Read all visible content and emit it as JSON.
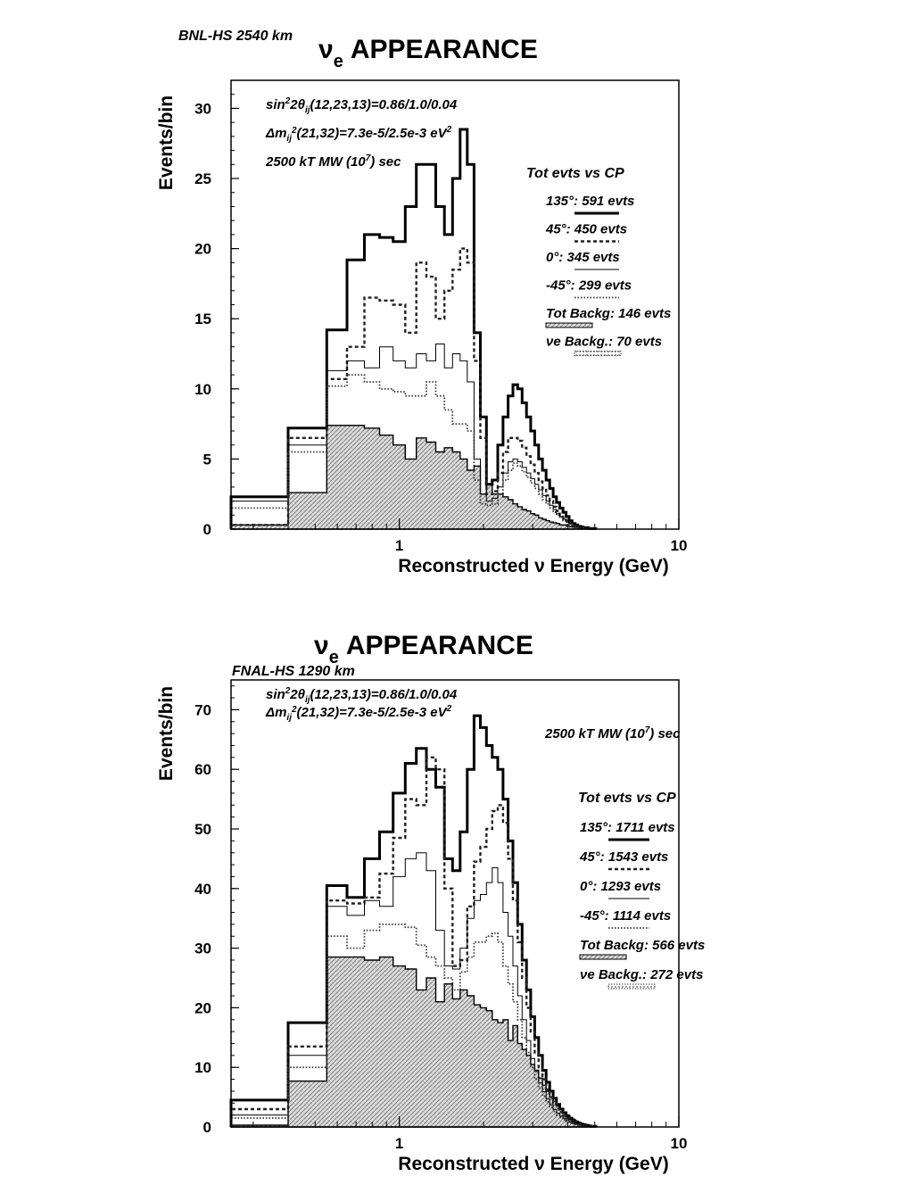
{
  "chart_data": [
    {
      "type": "line",
      "experiment_label": "BNL-HS 2540 km",
      "title_sym": "ν",
      "title_sub": "e",
      "title_rest": "APPEARANCE",
      "params": {
        "line1_a": "sin",
        "line1_b": "2",
        "line1_c": "2θ",
        "line1_d": "ij",
        "line1_e": "(12,23,13)=0.86/1.0/0.04",
        "line2_a": "Δm",
        "line2_b": "ij",
        "line2_c": "2",
        "line2_d": "(21,32)=7.3e-5/2.5e-3 eV",
        "line2_e": "2",
        "line3_a": "2500 kT MW (10",
        "line3_b": "7",
        "line3_c": ") sec"
      },
      "legend_title": "Tot evts vs CP",
      "legend": [
        {
          "text": "135°: 591 evts",
          "style": "solid"
        },
        {
          "text": "45°: 450  evts",
          "style": "dashed"
        },
        {
          "text": "0°: 345  evts",
          "style": "thin"
        },
        {
          "text": "-45°: 299  evts",
          "style": "dotted"
        },
        {
          "text": "Tot Backg: 146 evts",
          "style": "shaded"
        },
        {
          "text": "νe Backg.: 70 evts",
          "style": "dotted-shaded"
        }
      ],
      "ylabel": "Events/bin",
      "xlabel": "Reconstructed ν Energy (GeV)",
      "xscale": "log",
      "xlim": [
        0.25,
        10
      ],
      "ylim": [
        0,
        32
      ],
      "xticks": [
        {
          "v": 1,
          "label": "1"
        },
        {
          "v": 10,
          "label": "10"
        }
      ],
      "yticks": [
        0,
        5,
        10,
        15,
        20,
        25,
        30
      ],
      "coarse_edges": [
        0.25,
        0.4,
        0.55
      ],
      "fine_start": 0.55,
      "fine_step": 0.1,
      "fine_end": 10,
      "series": [
        {
          "style": "solid",
          "coarse": [
            2.3,
            7.2
          ],
          "fine": [
            14.2,
            19.2,
            21.0,
            20.8,
            20.5,
            23.0,
            26.0,
            26.0,
            23.0,
            21.0,
            25.0,
            28.5,
            26.0,
            14.0,
            8.0,
            3.2,
            3.5,
            6.0,
            8.0,
            9.5,
            10.3,
            10.0,
            9.0,
            8.0,
            7.0,
            6.0,
            5.0,
            4.2,
            3.5,
            2.9,
            2.3,
            1.9,
            1.5,
            1.2,
            0.9,
            0.6,
            0.4,
            0.3,
            0.2,
            0.15,
            0.1,
            0.1,
            0.05,
            0.05,
            0.05
          ]
        },
        {
          "style": "dashed",
          "coarse": [
            0.3,
            6.5
          ],
          "fine": [
            10.7,
            13.0,
            16.5,
            16.3,
            16.0,
            14.0,
            19.0,
            18.0,
            15.0,
            17.0,
            18.5,
            20.0,
            19.0,
            12.0,
            6.5,
            2.5,
            2.7,
            4.0,
            5.5,
            6.5,
            6.5,
            6.3,
            5.8,
            5.2,
            4.6,
            4.0,
            3.4,
            2.9,
            2.4,
            2.0,
            1.6,
            1.3,
            1.0,
            0.8,
            0.6,
            0.4,
            0.3,
            0.2,
            0.15,
            0.1,
            0.1,
            0.05,
            0.05,
            0.05,
            0.05
          ]
        },
        {
          "style": "thin",
          "coarse": [
            2.0,
            6.0
          ],
          "fine": [
            11.3,
            12.0,
            11.5,
            13.0,
            12.0,
            11.5,
            12.5,
            12.0,
            13.2,
            11.5,
            12.5,
            12.0,
            10.5,
            5.0,
            2.5,
            2.0,
            2.2,
            3.0,
            4.0,
            4.8,
            5.0,
            4.8,
            4.4,
            4.0,
            3.6,
            3.2,
            2.8,
            2.4,
            2.0,
            1.7,
            1.4,
            1.1,
            0.9,
            0.7,
            0.5,
            0.4,
            0.3,
            0.2,
            0.15,
            0.1,
            0.1,
            0.05,
            0.05,
            0.05,
            0.05
          ]
        },
        {
          "style": "dotted",
          "coarse": [
            1.5,
            5.5
          ],
          "fine": [
            10.2,
            11.0,
            10.5,
            10.0,
            9.8,
            9.5,
            9.5,
            10.5,
            9.5,
            8.5,
            7.5,
            7.5,
            7.0,
            3.5,
            1.8,
            1.7,
            1.8,
            2.5,
            3.5,
            4.2,
            4.7,
            4.5,
            4.1,
            3.7,
            3.3,
            2.9,
            2.5,
            2.1,
            1.8,
            1.5,
            1.2,
            1.0,
            0.8,
            0.6,
            0.5,
            0.35,
            0.25,
            0.2,
            0.15,
            0.1,
            0.1,
            0.05,
            0.05,
            0.05,
            0.05
          ]
        }
      ],
      "background": {
        "coarse": [
          0.3,
          2.6
        ],
        "fine": [
          7.4,
          7.4,
          7.2,
          6.7,
          6.0,
          5.0,
          6.5,
          6.2,
          5.5,
          5.8,
          5.5,
          5.0,
          4.2,
          4.5,
          2.5,
          3.2,
          2.5,
          2.5,
          2.3,
          2.1,
          1.8,
          1.6,
          1.4,
          1.3,
          1.1,
          1.0,
          0.8,
          0.7,
          0.6,
          0.5,
          0.45,
          0.4,
          0.3,
          0.3,
          0.25,
          0.2,
          0.15,
          0.12,
          0.1,
          0.1,
          0.08,
          0.05,
          0.05,
          0.05,
          0.05
        ]
      }
    },
    {
      "type": "line",
      "experiment_label": "FNAL-HS  1290 km",
      "title_sym": "ν",
      "title_sub": "e",
      "title_rest": "APPEARANCE",
      "params": {
        "line1_a": "sin",
        "line1_b": "2",
        "line1_c": "2θ",
        "line1_d": "ij",
        "line1_e": "(12,23,13)=0.86/1.0/0.04",
        "line2_a": "Δm",
        "line2_b": "ij",
        "line2_c": "2",
        "line2_d": "(21,32)=7.3e-5/2.5e-3 eV",
        "line2_e": "2",
        "line3_a": "2500 kT MW (10",
        "line3_b": "7",
        "line3_c": ") sec"
      },
      "legend_title": "Tot evts vs CP",
      "legend": [
        {
          "text": "135°: 1711 evts",
          "style": "solid"
        },
        {
          "text": "45°: 1543  evts",
          "style": "dashed"
        },
        {
          "text": "0°: 1293  evts",
          "style": "thin"
        },
        {
          "text": "-45°: 1114  evts",
          "style": "dotted"
        },
        {
          "text": "Tot Backg: 566 evts",
          "style": "shaded"
        },
        {
          "text": "νe Backg.: 272 evts",
          "style": "dotted-shaded"
        }
      ],
      "ylabel": "Events/bin",
      "xlabel": "Reconstructed ν Energy (GeV)",
      "xscale": "log",
      "xlim": [
        0.25,
        10
      ],
      "ylim": [
        0,
        75
      ],
      "xticks": [
        {
          "v": 1,
          "label": "1"
        },
        {
          "v": 10,
          "label": "10"
        }
      ],
      "yticks": [
        0,
        10,
        20,
        30,
        40,
        50,
        60,
        70
      ],
      "coarse_edges": [
        0.25,
        0.4,
        0.55
      ],
      "fine_start": 0.55,
      "fine_step": 0.1,
      "fine_end": 10,
      "series": [
        {
          "style": "solid",
          "coarse": [
            4.5,
            17.5
          ],
          "fine": [
            40.5,
            38.5,
            45.0,
            49.5,
            56.0,
            61.0,
            63.5,
            60.0,
            57.0,
            45.0,
            43.0,
            49.5,
            60.0,
            69.0,
            67.0,
            64.0,
            62.0,
            60.0,
            55.0,
            48.0,
            41.0,
            34.0,
            28.0,
            23.0,
            18.5,
            15.0,
            12.0,
            9.5,
            7.5,
            6.0,
            4.8,
            3.8,
            3.0,
            2.4,
            1.8,
            1.4,
            1.0,
            0.8,
            0.6,
            0.4,
            0.3,
            0.2,
            0.15,
            0.1,
            0.1
          ]
        },
        {
          "style": "dashed",
          "coarse": [
            3.0,
            13.5
          ],
          "fine": [
            38.0,
            37.5,
            38.5,
            42.5,
            48.5,
            55.0,
            54.0,
            62.0,
            60.0,
            40.0,
            27.0,
            28.0,
            37.0,
            44.5,
            47.0,
            50.0,
            53.0,
            54.0,
            51.0,
            45.0,
            38.0,
            31.0,
            25.0,
            20.0,
            16.0,
            12.5,
            10.0,
            8.0,
            6.3,
            5.0,
            4.0,
            3.1,
            2.5,
            1.9,
            1.5,
            1.1,
            0.8,
            0.6,
            0.45,
            0.35,
            0.25,
            0.2,
            0.15,
            0.1,
            0.1
          ]
        },
        {
          "style": "thin",
          "coarse": [
            2.0,
            12.0
          ],
          "fine": [
            37.0,
            35.5,
            38.0,
            37.0,
            42.0,
            45.0,
            46.0,
            43.0,
            33.0,
            27.0,
            26.5,
            30.0,
            35.0,
            38.0,
            39.0,
            41.0,
            43.5,
            41.0,
            36.0,
            32.0,
            27.0,
            22.0,
            18.0,
            14.5,
            11.5,
            9.3,
            7.4,
            5.9,
            4.7,
            3.7,
            2.9,
            2.3,
            1.8,
            1.4,
            1.1,
            0.8,
            0.6,
            0.45,
            0.35,
            0.25,
            0.2,
            0.15,
            0.1,
            0.1,
            0.05
          ]
        },
        {
          "style": "dotted",
          "coarse": [
            1.5,
            10.0
          ],
          "fine": [
            32.0,
            30.0,
            33.0,
            34.0,
            34.0,
            33.5,
            30.5,
            28.5,
            27.0,
            25.0,
            23.0,
            26.0,
            28.5,
            31.0,
            31.0,
            32.0,
            32.5,
            31.0,
            27.0,
            24.0,
            21.0,
            18.0,
            15.0,
            12.5,
            10.0,
            8.0,
            6.5,
            5.2,
            4.2,
            3.3,
            2.6,
            2.0,
            1.6,
            1.2,
            0.95,
            0.7,
            0.55,
            0.4,
            0.3,
            0.22,
            0.17,
            0.12,
            0.1,
            0.07,
            0.05
          ]
        }
      ],
      "background": {
        "coarse": [
          0.3,
          7.7
        ],
        "fine": [
          28.5,
          28.5,
          28.0,
          28.5,
          27.0,
          26.5,
          23.0,
          25.0,
          21.0,
          24.0,
          21.5,
          23.0,
          22.0,
          20.5,
          20.0,
          19.5,
          18.0,
          17.5,
          18.0,
          14.5,
          17.0,
          14.0,
          13.0,
          12.0,
          10.5,
          9.5,
          8.2,
          7.0,
          6.0,
          5.0,
          4.3,
          3.6,
          3.0,
          2.5,
          2.0,
          1.6,
          1.3,
          1.0,
          0.8,
          0.6,
          0.5,
          0.4,
          0.3,
          0.2,
          0.15
        ]
      }
    }
  ]
}
